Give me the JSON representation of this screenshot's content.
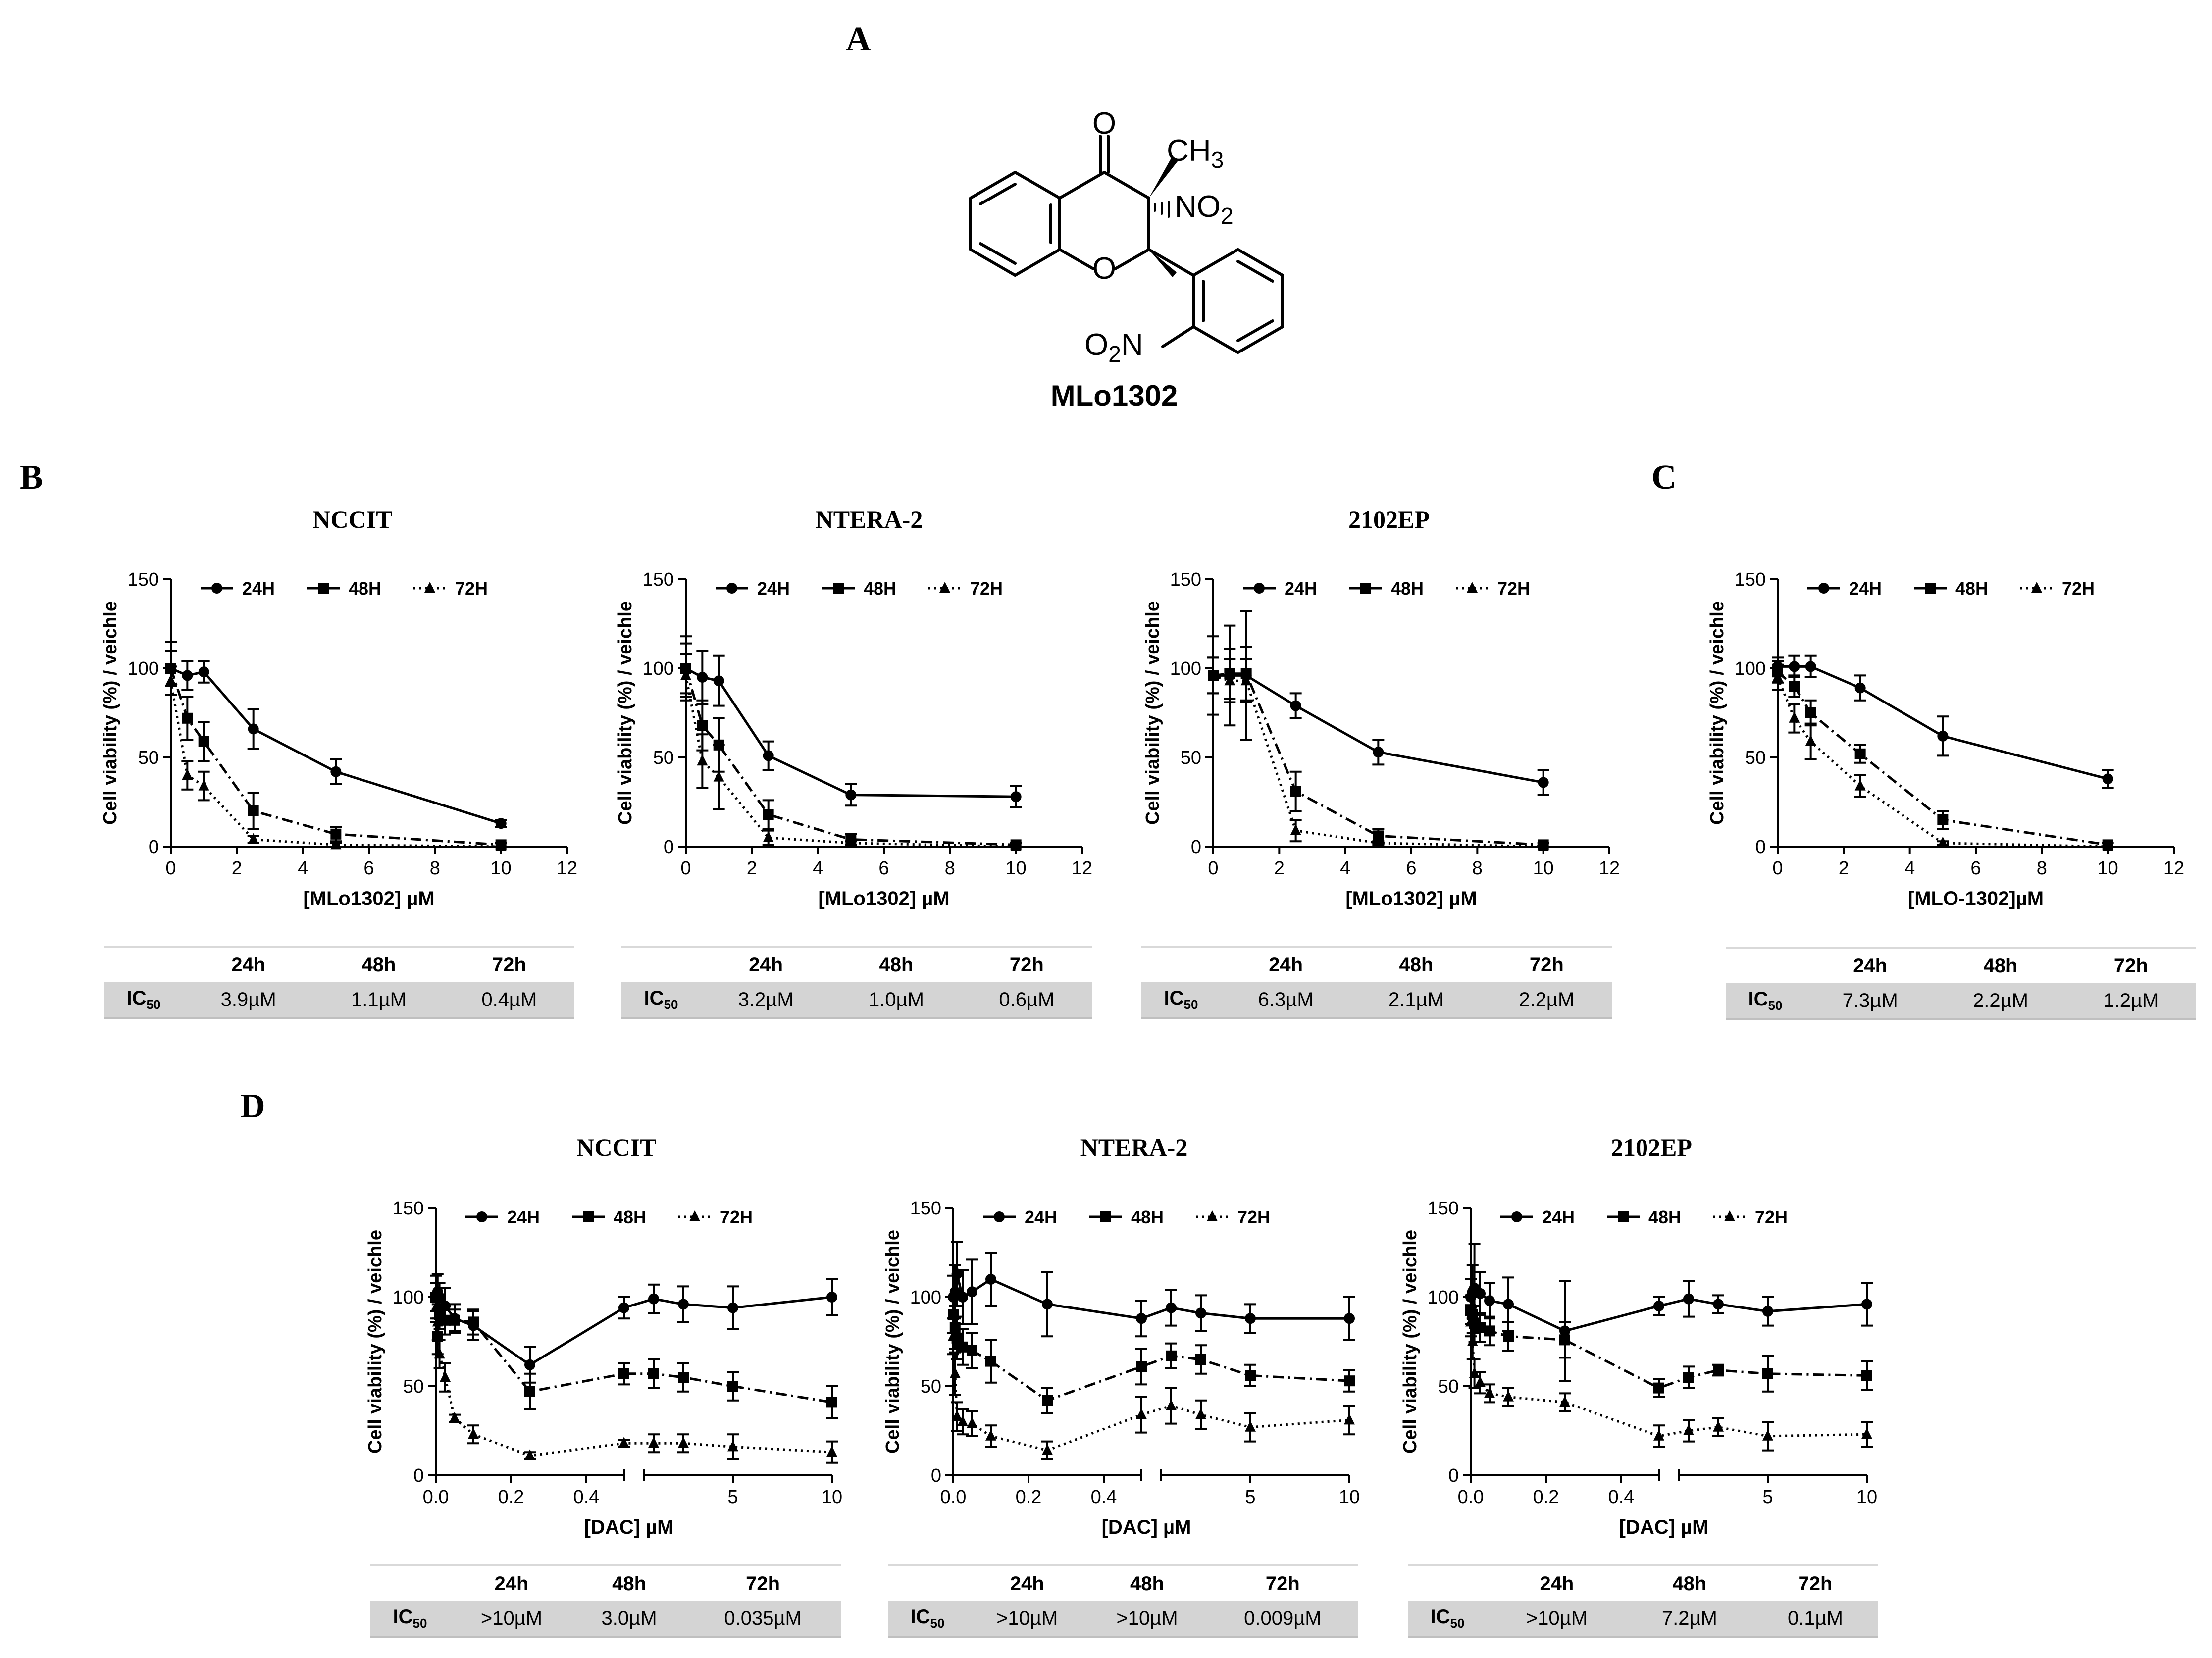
{
  "panels": {
    "A": "A",
    "B": "B",
    "C": "C",
    "D": "D"
  },
  "compound": {
    "name": "MLo1302",
    "atoms": {
      "o_keto": "O",
      "o_ring": "O",
      "ch3_c": "CH",
      "ch3_n": "3",
      "no2_n": "NO",
      "no2_n2": "2",
      "o2n_o": "O",
      "o2n_2": "2",
      "o2n_n": "N"
    }
  },
  "colors": {
    "line": "#000000",
    "axis": "#000000",
    "table_header_rule": "#d9d9d9",
    "table_row_bg": "#d4d4d4"
  },
  "icLabel": {
    "main": "IC",
    "sub": "50"
  },
  "chart_data": [
    {
      "id": "B-NCCIT",
      "panel": "B",
      "type": "line",
      "title": "NCCIT",
      "xlabel": "[MLo1302] µM",
      "ylabel": "Cell viability (%) / veichle",
      "xlim": [
        0,
        12
      ],
      "ylim": [
        0,
        150
      ],
      "xticks": [
        0,
        2,
        4,
        6,
        8,
        10,
        12
      ],
      "yticks": [
        0,
        50,
        100,
        150
      ],
      "legend": {
        "position": "top",
        "labels": [
          "24H",
          "48H",
          "72H"
        ]
      },
      "x": [
        0,
        0.5,
        1,
        2.5,
        5,
        10
      ],
      "series": [
        {
          "name": "24H",
          "marker": "circle",
          "dash": "solid",
          "values": [
            100,
            96,
            98,
            66,
            42,
            13
          ],
          "err": [
            15,
            8,
            6,
            11,
            7,
            2
          ]
        },
        {
          "name": "48H",
          "marker": "square",
          "dash": "dashdot",
          "values": [
            100,
            72,
            59,
            20,
            7,
            1
          ],
          "err": [
            10,
            12,
            11,
            10,
            4,
            1
          ]
        },
        {
          "name": "72H",
          "marker": "triangle",
          "dash": "dotted",
          "values": [
            93,
            40,
            34,
            4,
            1,
            0
          ],
          "err": [
            8,
            8,
            8,
            2,
            1,
            0
          ]
        }
      ],
      "ic50_table": {
        "headers": [
          "24h",
          "48h",
          "72h"
        ],
        "values": [
          "3.9µM",
          "1.1µM",
          "0.4µM"
        ]
      }
    },
    {
      "id": "B-NTERA2",
      "panel": "B",
      "type": "line",
      "title": "NTERA-2",
      "xlabel": "[MLo1302] µM",
      "ylabel": "Cell viability (%) / veichle",
      "xlim": [
        0,
        12
      ],
      "ylim": [
        0,
        150
      ],
      "xticks": [
        0,
        2,
        4,
        6,
        8,
        10,
        12
      ],
      "yticks": [
        0,
        50,
        100,
        150
      ],
      "legend": {
        "position": "top",
        "labels": [
          "24H",
          "48H",
          "72H"
        ]
      },
      "x": [
        0,
        0.5,
        1,
        2.5,
        5,
        10
      ],
      "series": [
        {
          "name": "24H",
          "marker": "circle",
          "dash": "solid",
          "values": [
            100,
            95,
            93,
            51,
            29,
            28
          ],
          "err": [
            18,
            15,
            14,
            8,
            6,
            6
          ]
        },
        {
          "name": "48H",
          "marker": "square",
          "dash": "dashdot",
          "values": [
            100,
            68,
            57,
            18,
            4,
            1
          ],
          "err": [
            14,
            14,
            15,
            8,
            3,
            1
          ]
        },
        {
          "name": "72H",
          "marker": "triangle",
          "dash": "dotted",
          "values": [
            96,
            48,
            39,
            5,
            2,
            0
          ],
          "err": [
            12,
            15,
            18,
            4,
            1,
            0
          ]
        }
      ],
      "ic50_table": {
        "headers": [
          "24h",
          "48h",
          "72h"
        ],
        "values": [
          "3.2µM",
          "1.0µM",
          "0.6µM"
        ]
      }
    },
    {
      "id": "B-2102EP",
      "panel": "B",
      "type": "line",
      "title": "2102EP",
      "xlabel": "[MLo1302] µM",
      "ylabel": "Cell viability (%) / veichle",
      "xlim": [
        0,
        12
      ],
      "ylim": [
        0,
        150
      ],
      "xticks": [
        0,
        2,
        4,
        6,
        8,
        10,
        12
      ],
      "yticks": [
        0,
        50,
        100,
        150
      ],
      "legend": {
        "position": "top",
        "labels": [
          "24H",
          "48H",
          "72H"
        ]
      },
      "x": [
        0,
        0.5,
        1,
        2.5,
        5,
        10
      ],
      "series": [
        {
          "name": "24H",
          "marker": "circle",
          "dash": "solid",
          "values": [
            96,
            96,
            96,
            79,
            53,
            36
          ],
          "err": [
            22,
            28,
            36,
            7,
            7,
            7
          ]
        },
        {
          "name": "48H",
          "marker": "square",
          "dash": "dashdot",
          "values": [
            96,
            97,
            97,
            31,
            6,
            1
          ],
          "err": [
            10,
            14,
            15,
            11,
            4,
            1
          ]
        },
        {
          "name": "72H",
          "marker": "triangle",
          "dash": "dotted",
          "values": [
            96,
            93,
            93,
            9,
            2,
            0
          ],
          "err": [
            10,
            12,
            12,
            6,
            1,
            0
          ]
        }
      ],
      "ic50_table": {
        "headers": [
          "24h",
          "48h",
          "72h"
        ],
        "values": [
          "6.3µM",
          "2.1µM",
          "2.2µM"
        ]
      }
    },
    {
      "id": "C",
      "panel": "C",
      "type": "line",
      "title": "",
      "xlabel": "[MLO-1302]µM",
      "ylabel": "Cell viability (%) / veichle",
      "xlim": [
        0,
        12
      ],
      "ylim": [
        0,
        150
      ],
      "xticks": [
        0,
        2,
        4,
        6,
        8,
        10,
        12
      ],
      "yticks": [
        0,
        50,
        100,
        150
      ],
      "legend": {
        "position": "top",
        "labels": [
          "24H",
          "48H",
          "72H"
        ]
      },
      "x": [
        0,
        0.5,
        1,
        2.5,
        5,
        10
      ],
      "series": [
        {
          "name": "24H",
          "marker": "circle",
          "dash": "solid",
          "values": [
            101,
            101,
            101,
            89,
            62,
            38
          ],
          "err": [
            5,
            6,
            6,
            7,
            11,
            5
          ]
        },
        {
          "name": "48H",
          "marker": "square",
          "dash": "dashdot",
          "values": [
            98,
            90,
            75,
            52,
            15,
            1
          ],
          "err": [
            6,
            6,
            7,
            5,
            5,
            1
          ]
        },
        {
          "name": "72H",
          "marker": "triangle",
          "dash": "dotted",
          "values": [
            95,
            72,
            59,
            34,
            2,
            0
          ],
          "err": [
            7,
            8,
            10,
            6,
            1,
            0
          ]
        }
      ],
      "ic50_table": {
        "headers": [
          "24h",
          "48h",
          "72h"
        ],
        "values": [
          "7.3µM",
          "2.2µM",
          "1.2µM"
        ]
      }
    },
    {
      "id": "D-NCCIT",
      "panel": "D",
      "type": "line",
      "title": "NCCIT",
      "xlabel": "[DAC] µM",
      "ylabel": "Cell viability (%) / veichle",
      "ylim": [
        0,
        150
      ],
      "yticks": [
        0,
        50,
        100,
        150
      ],
      "x_axis": {
        "segments": [
          {
            "range": [
              0,
              0.5
            ],
            "ticks": [
              0,
              0.2,
              0.4
            ],
            "tick_labels": [
              "0.0",
              "0.2",
              "0.4"
            ]
          },
          {
            "range": [
              0.5,
              10
            ],
            "ticks": [
              5,
              10
            ],
            "tick_labels": [
              "5",
              "10"
            ]
          }
        ]
      },
      "legend": {
        "position": "top",
        "labels": [
          "24H",
          "48H",
          "72H"
        ]
      },
      "x": [
        0,
        0.005,
        0.01,
        0.025,
        0.05,
        0.1,
        0.25,
        0.5,
        1,
        2.5,
        5,
        10
      ],
      "series": [
        {
          "name": "24H",
          "marker": "circle",
          "dash": "solid",
          "values": [
            100,
            103,
            100,
            95,
            88,
            84,
            62,
            94,
            99,
            96,
            94,
            100
          ],
          "err": [
            12,
            10,
            8,
            10,
            8,
            8,
            10,
            6,
            8,
            10,
            12,
            10
          ]
        },
        {
          "name": "48H",
          "marker": "square",
          "dash": "dashdot",
          "values": [
            100,
            78,
            90,
            87,
            87,
            86,
            47,
            57,
            57,
            55,
            50,
            41
          ],
          "err": [
            8,
            10,
            8,
            8,
            6,
            7,
            10,
            6,
            8,
            8,
            8,
            9
          ]
        },
        {
          "name": "72H",
          "marker": "triangle",
          "dash": "dotted",
          "values": [
            94,
            86,
            68,
            55,
            32,
            23,
            11,
            18,
            18,
            18,
            16,
            13
          ],
          "err": [
            8,
            10,
            8,
            8,
            2,
            5,
            2,
            2,
            5,
            5,
            7,
            6
          ]
        }
      ],
      "ic50_table": {
        "headers": [
          "24h",
          "48h",
          "72h"
        ],
        "values": [
          ">10µM",
          "3.0µM",
          "0.035µM"
        ]
      }
    },
    {
      "id": "D-NTERA2",
      "panel": "D",
      "type": "line",
      "title": "NTERA-2",
      "xlabel": "[DAC] µM",
      "ylabel": "Cell viability (%) / veichle",
      "ylim": [
        0,
        150
      ],
      "yticks": [
        0,
        50,
        100,
        150
      ],
      "x_axis": {
        "segments": [
          {
            "range": [
              0,
              0.5
            ],
            "ticks": [
              0,
              0.2,
              0.4
            ],
            "tick_labels": [
              "0.0",
              "0.2",
              "0.4"
            ]
          },
          {
            "range": [
              0.5,
              10
            ],
            "ticks": [
              5,
              10
            ],
            "tick_labels": [
              "5",
              "10"
            ]
          }
        ]
      },
      "legend": {
        "position": "top",
        "labels": [
          "24H",
          "48H",
          "72H"
        ]
      },
      "x": [
        0,
        0.005,
        0.01,
        0.025,
        0.05,
        0.1,
        0.25,
        0.5,
        1,
        2.5,
        5,
        10
      ],
      "series": [
        {
          "name": "24H",
          "marker": "circle",
          "dash": "solid",
          "values": [
            100,
            103,
            113,
            100,
            103,
            110,
            96,
            88,
            94,
            91,
            88,
            88
          ],
          "err": [
            12,
            15,
            18,
            15,
            18,
            15,
            18,
            10,
            10,
            10,
            8,
            12
          ]
        },
        {
          "name": "48H",
          "marker": "square",
          "dash": "dashdot",
          "values": [
            90,
            83,
            77,
            72,
            70,
            64,
            42,
            61,
            67,
            65,
            56,
            53
          ],
          "err": [
            10,
            12,
            12,
            10,
            10,
            12,
            7,
            10,
            7,
            8,
            6,
            6
          ]
        },
        {
          "name": "72H",
          "marker": "triangle",
          "dash": "dotted",
          "values": [
            78,
            57,
            33,
            30,
            29,
            22,
            14,
            34,
            39,
            34,
            27,
            31
          ],
          "err": [
            10,
            12,
            8,
            7,
            7,
            6,
            5,
            10,
            10,
            8,
            8,
            8
          ]
        }
      ],
      "ic50_table": {
        "headers": [
          "24h",
          "48h",
          "72h"
        ],
        "values": [
          ">10µM",
          ">10µM",
          "0.009µM"
        ]
      }
    },
    {
      "id": "D-2102EP",
      "panel": "D",
      "type": "line",
      "title": "2102EP",
      "xlabel": "[DAC] µM",
      "ylabel": "Cell viability (%) / veichle",
      "ylim": [
        0,
        150
      ],
      "yticks": [
        0,
        50,
        100,
        150
      ],
      "x_axis": {
        "segments": [
          {
            "range": [
              0,
              0.5
            ],
            "ticks": [
              0,
              0.2,
              0.4
            ],
            "tick_labels": [
              "0.0",
              "0.2",
              "0.4"
            ]
          },
          {
            "range": [
              0.5,
              10
            ],
            "ticks": [
              5,
              10
            ],
            "tick_labels": [
              "5",
              "10"
            ]
          }
        ]
      },
      "legend": {
        "position": "top",
        "labels": [
          "24H",
          "48H",
          "72H"
        ]
      },
      "x": [
        0,
        0.005,
        0.01,
        0.025,
        0.05,
        0.1,
        0.25,
        0.5,
        1,
        2.5,
        5,
        10
      ],
      "series": [
        {
          "name": "24H",
          "marker": "circle",
          "dash": "solid",
          "values": [
            100,
            103,
            105,
            102,
            98,
            96,
            81,
            95,
            99,
            96,
            92,
            96
          ],
          "err": [
            10,
            15,
            25,
            12,
            10,
            15,
            28,
            5,
            10,
            5,
            8,
            12
          ]
        },
        {
          "name": "48H",
          "marker": "square",
          "dash": "dashdot",
          "values": [
            93,
            90,
            85,
            83,
            81,
            78,
            76,
            49,
            55,
            59,
            57,
            56
          ],
          "err": [
            8,
            10,
            10,
            8,
            8,
            8,
            10,
            5,
            6,
            3,
            10,
            8
          ]
        },
        {
          "name": "72H",
          "marker": "triangle",
          "dash": "dotted",
          "values": [
            86,
            75,
            57,
            52,
            46,
            44,
            41,
            22,
            25,
            27,
            22,
            23
          ],
          "err": [
            8,
            10,
            8,
            6,
            5,
            5,
            5,
            6,
            6,
            5,
            8,
            7
          ]
        }
      ],
      "ic50_table": {
        "headers": [
          "24h",
          "48h",
          "72h"
        ],
        "values": [
          ">10µM",
          "7.2µM",
          "0.1µM"
        ]
      }
    }
  ]
}
